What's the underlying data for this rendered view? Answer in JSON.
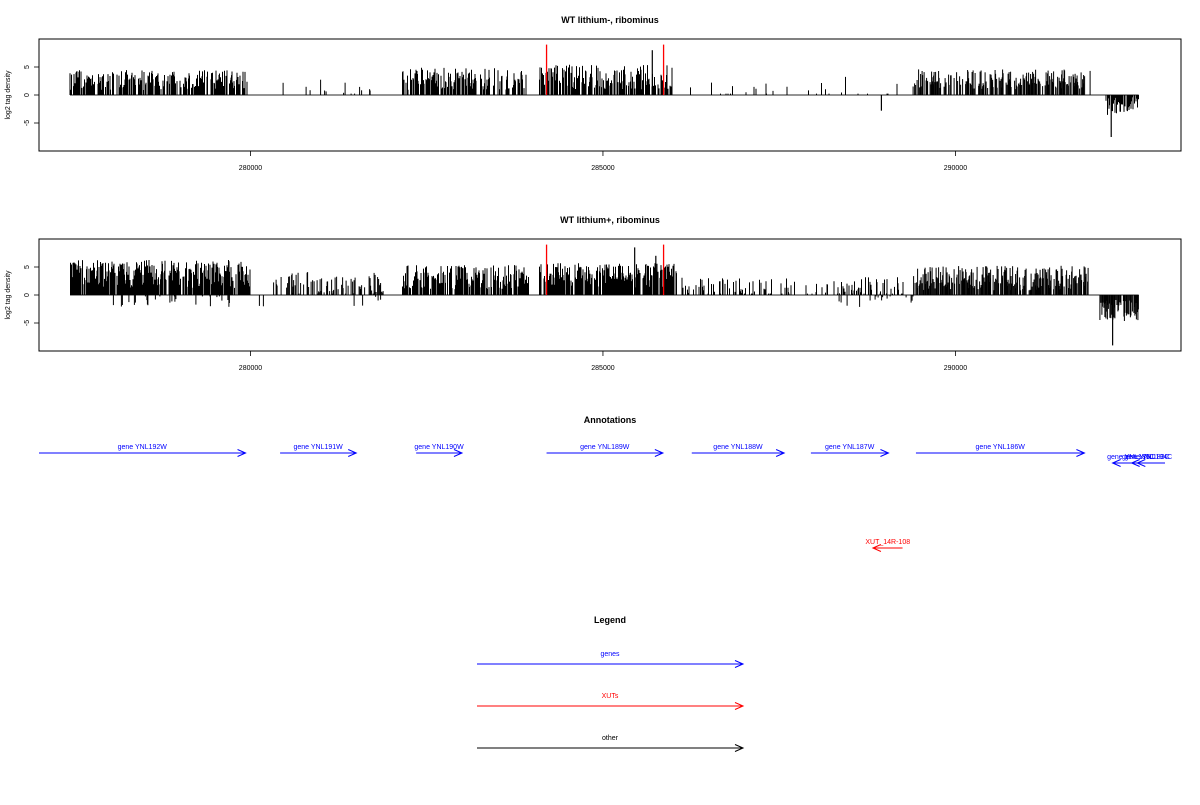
{
  "colors": {
    "genes": "#0000ff",
    "xuts": "#ff0000",
    "other": "#000000",
    "marker": "#ff0000",
    "bars": "#000000"
  },
  "chart_data": [
    {
      "type": "bar",
      "title": "WT lithium-, ribominus",
      "ylabel": "log2 tag density",
      "xlabel": "",
      "xlim": [
        277000,
        293200
      ],
      "ylim": [
        -10,
        10
      ],
      "x_ticks": [
        280000,
        285000,
        290000
      ],
      "y_ticks": [
        -5,
        0,
        5
      ],
      "grid": false,
      "markers_x": [
        284200,
        285860
      ],
      "marker_heights": [
        9,
        9
      ],
      "segments": [
        {
          "start": 277440,
          "end": 279970,
          "sign": 1,
          "base": 2.5,
          "amp": 1.8,
          "density": 0.5
        },
        {
          "start": 280300,
          "end": 281700,
          "sign": 1,
          "base": 0.9,
          "amp": 2.0,
          "density": 0.07
        },
        {
          "start": 282150,
          "end": 283920,
          "sign": 1,
          "base": 2.7,
          "amp": 2.0,
          "density": 0.5
        },
        {
          "start": 284100,
          "end": 285980,
          "sign": 1,
          "base": 3.0,
          "amp": 2.2,
          "density": 0.6
        },
        {
          "start": 286100,
          "end": 289350,
          "sign": 1,
          "base": 1.1,
          "amp": 2.2,
          "density": 0.08
        },
        {
          "start": 289400,
          "end": 291920,
          "sign": 1,
          "base": 2.6,
          "amp": 1.8,
          "density": 0.55
        },
        {
          "start": 292100,
          "end": 292600,
          "sign": -1,
          "base": 1.8,
          "amp": 1.6,
          "density": 0.55
        }
      ],
      "spikes": [
        {
          "x": 288950,
          "y": -2.8
        },
        {
          "x": 292210,
          "y": -7.5
        },
        {
          "x": 285700,
          "y": 8.0
        }
      ]
    },
    {
      "type": "bar",
      "title": "WT lithium+, ribominus",
      "ylabel": "log2 tag density",
      "xlabel": "",
      "xlim": [
        277000,
        293200
      ],
      "ylim": [
        -10,
        10
      ],
      "x_ticks": [
        280000,
        285000,
        290000
      ],
      "y_ticks": [
        -5,
        0,
        5
      ],
      "grid": false,
      "markers_x": [
        284200,
        285860
      ],
      "marker_heights": [
        9,
        9
      ],
      "segments": [
        {
          "start": 277440,
          "end": 280000,
          "sign": 1,
          "base": 3.5,
          "amp": 2.5,
          "density": 0.75
        },
        {
          "start": 277900,
          "end": 280200,
          "sign": -1,
          "base": 0.8,
          "amp": 1.2,
          "density": 0.1
        },
        {
          "start": 280300,
          "end": 281900,
          "sign": 1,
          "base": 1.9,
          "amp": 2.0,
          "density": 0.35
        },
        {
          "start": 281300,
          "end": 282000,
          "sign": -1,
          "base": 0.8,
          "amp": 1.2,
          "density": 0.1
        },
        {
          "start": 282150,
          "end": 283950,
          "sign": 1,
          "base": 3.0,
          "amp": 2.2,
          "density": 0.6
        },
        {
          "start": 284100,
          "end": 286050,
          "sign": 1,
          "base": 3.3,
          "amp": 2.2,
          "density": 0.7
        },
        {
          "start": 286100,
          "end": 289300,
          "sign": 1,
          "base": 1.2,
          "amp": 1.8,
          "density": 0.25
        },
        {
          "start": 288300,
          "end": 289400,
          "sign": -1,
          "base": 0.9,
          "amp": 1.2,
          "density": 0.12
        },
        {
          "start": 289400,
          "end": 291900,
          "sign": 1,
          "base": 2.8,
          "amp": 2.2,
          "density": 0.6
        },
        {
          "start": 292050,
          "end": 292600,
          "sign": -1,
          "base": 2.5,
          "amp": 2.0,
          "density": 0.65
        }
      ],
      "spikes": [
        {
          "x": 285450,
          "y": 8.5
        },
        {
          "x": 285750,
          "y": 7.0
        },
        {
          "x": 292230,
          "y": -9.0
        }
      ]
    }
  ],
  "annotations": {
    "title": "Annotations",
    "genes": [
      {
        "label": "gene YNL192W",
        "start": 277000,
        "end": 279930,
        "strand": "+"
      },
      {
        "label": "gene YNL191W",
        "start": 280420,
        "end": 281500,
        "strand": "+"
      },
      {
        "label": "gene YNL190W",
        "start": 282350,
        "end": 283000,
        "strand": "+"
      },
      {
        "label": "gene YNL189W",
        "start": 284200,
        "end": 285850,
        "strand": "+"
      },
      {
        "label": "gene YNL188W",
        "start": 286260,
        "end": 287570,
        "strand": "+"
      },
      {
        "label": "gene YNL187W",
        "start": 287950,
        "end": 289050,
        "strand": "+"
      },
      {
        "label": "gene YNL186W",
        "start": 289440,
        "end": 291830,
        "strand": "+"
      },
      {
        "label": "gene YNL185C",
        "start": 292230,
        "end": 292750,
        "strand": "-"
      },
      {
        "label": "gene YNL184C",
        "start": 292500,
        "end": 293000,
        "strand": "-"
      },
      {
        "label": "gene YNL183C",
        "start": 292580,
        "end": 292820,
        "strand": "-"
      }
    ],
    "xuts": [
      {
        "label": "XUT_14R-108",
        "start": 288830,
        "end": 289250,
        "strand": "-"
      }
    ]
  },
  "legend": {
    "title": "Legend",
    "items": [
      {
        "label": "genes",
        "color": "#0000ff"
      },
      {
        "label": "XUTs",
        "color": "#ff0000"
      },
      {
        "label": "other",
        "color": "#000000"
      }
    ]
  }
}
